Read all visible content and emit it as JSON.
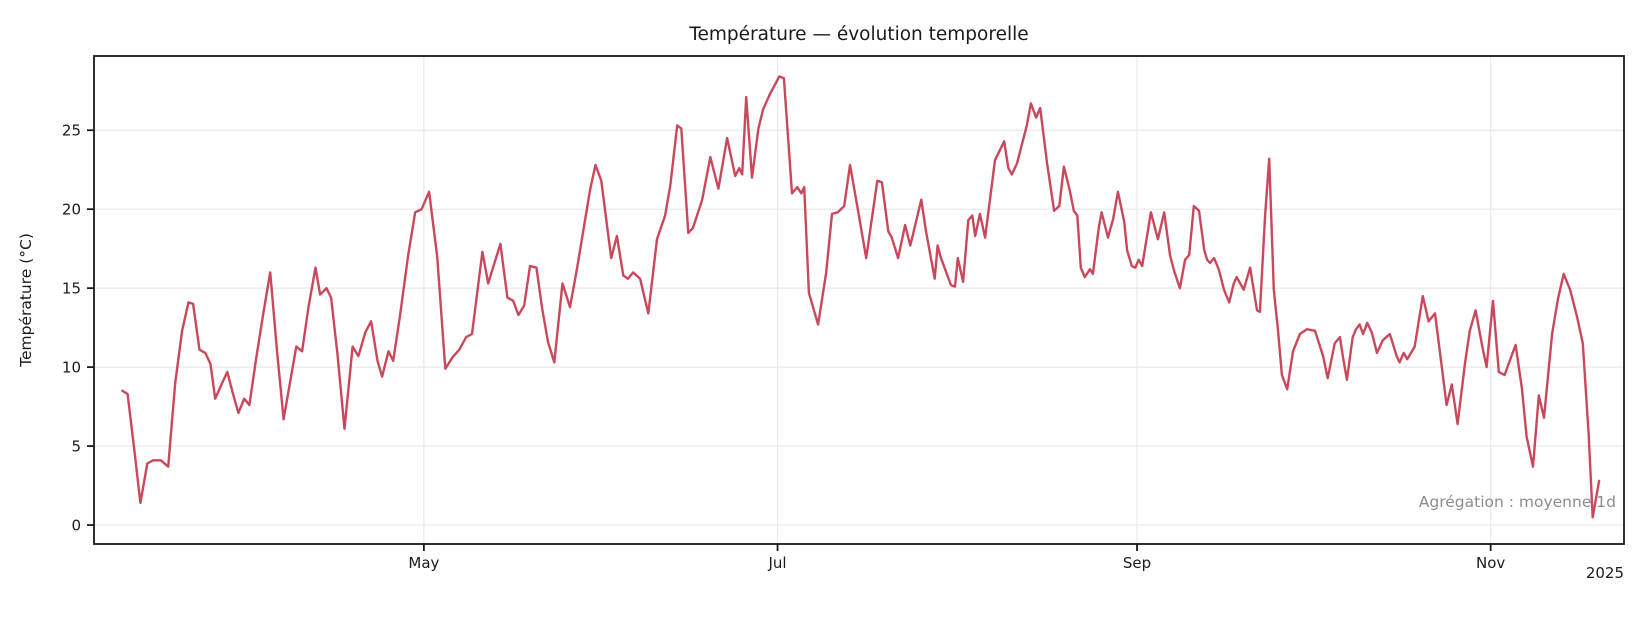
{
  "chart_data": {
    "type": "line",
    "title": "Température — évolution temporelle",
    "ylabel": "Température (°C)",
    "annotation": "Agrégation : moyenne 1d",
    "year_label": "2025",
    "grid": true,
    "legend": "none",
    "line_color": "#c9485c",
    "grid_color": "#e8e8e8",
    "spine_color": "#1a1a1a",
    "annotation_color": "#8c8c8c",
    "x_unit": "days since first sample (daily means, ~2025-03-10 to ~2025-11-19)",
    "xlim_days": [
      -4.9,
      259.0
    ],
    "ylim": [
      -1.2,
      29.7
    ],
    "y_ticks": [
      0,
      5,
      10,
      15,
      20,
      25
    ],
    "x_ticks": [
      {
        "day": 52,
        "label": "May"
      },
      {
        "day": 113,
        "label": "Jul"
      },
      {
        "day": 175,
        "label": "Sep"
      },
      {
        "day": 236,
        "label": "Nov"
      }
    ],
    "series": [
      {
        "name": "Température (moyenne 1d)",
        "points": [
          [
            0,
            8.5
          ],
          [
            0.9,
            8.3
          ],
          [
            2.1,
            4.6
          ],
          [
            3.1,
            1.4
          ],
          [
            4.3,
            3.9
          ],
          [
            5.3,
            4.1
          ],
          [
            6.6,
            4.1
          ],
          [
            7.9,
            3.7
          ],
          [
            9.1,
            9.0
          ],
          [
            10.3,
            12.3
          ],
          [
            11.4,
            14.1
          ],
          [
            12.2,
            14.0
          ],
          [
            13.3,
            11.1
          ],
          [
            14.3,
            10.9
          ],
          [
            15.2,
            10.2
          ],
          [
            16.0,
            8.0
          ],
          [
            17.1,
            8.9
          ],
          [
            18.1,
            9.7
          ],
          [
            19.0,
            8.4
          ],
          [
            20.0,
            7.1
          ],
          [
            21.0,
            8.0
          ],
          [
            21.9,
            7.6
          ],
          [
            23.1,
            10.6
          ],
          [
            24.3,
            13.4
          ],
          [
            25.5,
            16.0
          ],
          [
            26.7,
            10.9
          ],
          [
            27.8,
            6.7
          ],
          [
            29.0,
            9.2
          ],
          [
            30.0,
            11.3
          ],
          [
            31.0,
            11.0
          ],
          [
            32.1,
            13.8
          ],
          [
            33.3,
            16.3
          ],
          [
            34.1,
            14.6
          ],
          [
            35.2,
            15.0
          ],
          [
            36.0,
            14.4
          ],
          [
            37.1,
            10.8
          ],
          [
            38.3,
            6.1
          ],
          [
            39.7,
            11.3
          ],
          [
            40.7,
            10.7
          ],
          [
            41.9,
            12.2
          ],
          [
            42.9,
            12.9
          ],
          [
            44.0,
            10.4
          ],
          [
            44.8,
            9.4
          ],
          [
            45.9,
            11.0
          ],
          [
            46.7,
            10.4
          ],
          [
            47.9,
            13.3
          ],
          [
            49.3,
            17.1
          ],
          [
            50.5,
            19.8
          ],
          [
            51.6,
            20.0
          ],
          [
            52.9,
            21.1
          ],
          [
            54.3,
            17.0
          ],
          [
            55.7,
            9.9
          ],
          [
            56.9,
            10.6
          ],
          [
            58.1,
            11.1
          ],
          [
            59.3,
            11.9
          ],
          [
            60.3,
            12.1
          ],
          [
            62.1,
            17.3
          ],
          [
            63.1,
            15.3
          ],
          [
            64.1,
            16.5
          ],
          [
            65.2,
            17.8
          ],
          [
            66.4,
            14.4
          ],
          [
            67.4,
            14.2
          ],
          [
            68.3,
            13.3
          ],
          [
            69.3,
            13.9
          ],
          [
            70.3,
            16.4
          ],
          [
            71.4,
            16.3
          ],
          [
            72.4,
            13.7
          ],
          [
            73.4,
            11.6
          ],
          [
            74.5,
            10.3
          ],
          [
            75.9,
            15.3
          ],
          [
            77.2,
            13.8
          ],
          [
            78.4,
            16.2
          ],
          [
            79.7,
            19.1
          ],
          [
            80.7,
            21.3
          ],
          [
            81.6,
            22.8
          ],
          [
            82.6,
            21.8
          ],
          [
            84.3,
            16.9
          ],
          [
            85.3,
            18.3
          ],
          [
            86.4,
            15.8
          ],
          [
            87.2,
            15.6
          ],
          [
            88.1,
            16.0
          ],
          [
            89.3,
            15.6
          ],
          [
            90.7,
            13.4
          ],
          [
            92.2,
            18.1
          ],
          [
            93.6,
            19.6
          ],
          [
            94.5,
            21.5
          ],
          [
            95.7,
            25.3
          ],
          [
            96.4,
            25.1
          ],
          [
            97.6,
            18.5
          ],
          [
            98.4,
            18.8
          ],
          [
            100.0,
            20.6
          ],
          [
            101.4,
            23.3
          ],
          [
            102.8,
            21.3
          ],
          [
            104.3,
            24.5
          ],
          [
            105.7,
            22.1
          ],
          [
            106.4,
            22.6
          ],
          [
            106.9,
            22.2
          ],
          [
            107.6,
            27.1
          ],
          [
            108.6,
            22.0
          ],
          [
            109.7,
            25.1
          ],
          [
            110.5,
            26.3
          ],
          [
            111.7,
            27.3
          ],
          [
            113.3,
            28.4
          ],
          [
            114.1,
            28.3
          ],
          [
            115.5,
            21.0
          ],
          [
            116.4,
            21.4
          ],
          [
            117.1,
            21.0
          ],
          [
            117.6,
            21.4
          ],
          [
            118.4,
            14.7
          ],
          [
            120.0,
            12.7
          ],
          [
            121.4,
            16.0
          ],
          [
            122.4,
            19.7
          ],
          [
            123.4,
            19.8
          ],
          [
            124.5,
            20.2
          ],
          [
            125.5,
            22.8
          ],
          [
            126.9,
            19.9
          ],
          [
            128.3,
            16.9
          ],
          [
            130.2,
            21.8
          ],
          [
            131.0,
            21.7
          ],
          [
            132.1,
            18.6
          ],
          [
            132.7,
            18.2
          ],
          [
            133.8,
            16.9
          ],
          [
            135.0,
            19.0
          ],
          [
            135.9,
            17.7
          ],
          [
            137.8,
            20.6
          ],
          [
            138.6,
            18.6
          ],
          [
            140.1,
            15.6
          ],
          [
            140.6,
            17.7
          ],
          [
            141.2,
            16.9
          ],
          [
            142.9,
            15.2
          ],
          [
            143.6,
            15.1
          ],
          [
            144.1,
            16.9
          ],
          [
            145.0,
            15.4
          ],
          [
            145.9,
            19.3
          ],
          [
            146.6,
            19.6
          ],
          [
            147.1,
            18.3
          ],
          [
            147.9,
            19.7
          ],
          [
            148.8,
            18.2
          ],
          [
            150.5,
            23.1
          ],
          [
            152.1,
            24.3
          ],
          [
            152.8,
            22.6
          ],
          [
            153.4,
            22.2
          ],
          [
            154.3,
            22.9
          ],
          [
            156.0,
            25.3
          ],
          [
            156.7,
            26.7
          ],
          [
            157.6,
            25.8
          ],
          [
            158.3,
            26.4
          ],
          [
            159.5,
            22.9
          ],
          [
            160.7,
            19.9
          ],
          [
            161.6,
            20.2
          ],
          [
            162.4,
            22.7
          ],
          [
            163.4,
            21.2
          ],
          [
            164.1,
            19.9
          ],
          [
            164.7,
            19.6
          ],
          [
            165.3,
            16.3
          ],
          [
            166.0,
            15.7
          ],
          [
            166.9,
            16.2
          ],
          [
            167.4,
            15.9
          ],
          [
            168.4,
            18.8
          ],
          [
            168.9,
            19.8
          ],
          [
            170.0,
            18.2
          ],
          [
            170.9,
            19.4
          ],
          [
            171.7,
            21.1
          ],
          [
            172.8,
            19.2
          ],
          [
            173.3,
            17.4
          ],
          [
            174.1,
            16.4
          ],
          [
            174.7,
            16.3
          ],
          [
            175.3,
            16.8
          ],
          [
            175.9,
            16.4
          ],
          [
            177.4,
            19.8
          ],
          [
            178.6,
            18.1
          ],
          [
            179.7,
            19.8
          ],
          [
            180.7,
            17.1
          ],
          [
            181.4,
            16.1
          ],
          [
            182.4,
            15.0
          ],
          [
            183.3,
            16.8
          ],
          [
            184.0,
            17.1
          ],
          [
            184.8,
            20.2
          ],
          [
            185.7,
            19.9
          ],
          [
            186.6,
            17.4
          ],
          [
            187.1,
            16.8
          ],
          [
            187.6,
            16.6
          ],
          [
            188.3,
            16.9
          ],
          [
            189.1,
            16.2
          ],
          [
            190.0,
            14.9
          ],
          [
            190.9,
            14.1
          ],
          [
            191.7,
            15.3
          ],
          [
            192.2,
            15.7
          ],
          [
            193.4,
            14.9
          ],
          [
            194.5,
            16.3
          ],
          [
            195.7,
            13.6
          ],
          [
            196.2,
            13.5
          ],
          [
            197.1,
            19.6
          ],
          [
            197.8,
            23.2
          ],
          [
            198.6,
            14.9
          ],
          [
            199.3,
            12.4
          ],
          [
            200.0,
            9.5
          ],
          [
            200.9,
            8.6
          ],
          [
            201.9,
            11.0
          ],
          [
            203.1,
            12.1
          ],
          [
            204.3,
            12.4
          ],
          [
            205.7,
            12.3
          ],
          [
            207.1,
            10.7
          ],
          [
            207.9,
            9.3
          ],
          [
            209.1,
            11.5
          ],
          [
            210.0,
            11.9
          ],
          [
            210.5,
            10.7
          ],
          [
            211.2,
            9.2
          ],
          [
            212.2,
            11.9
          ],
          [
            212.8,
            12.4
          ],
          [
            213.4,
            12.7
          ],
          [
            214.0,
            12.1
          ],
          [
            214.7,
            12.8
          ],
          [
            215.5,
            12.2
          ],
          [
            216.4,
            10.9
          ],
          [
            217.4,
            11.7
          ],
          [
            218.6,
            12.1
          ],
          [
            219.8,
            10.7
          ],
          [
            220.3,
            10.3
          ],
          [
            221.0,
            10.9
          ],
          [
            221.6,
            10.5
          ],
          [
            222.9,
            11.3
          ],
          [
            224.3,
            14.5
          ],
          [
            225.3,
            12.9
          ],
          [
            226.4,
            13.4
          ],
          [
            227.4,
            10.5
          ],
          [
            228.4,
            7.6
          ],
          [
            229.3,
            8.9
          ],
          [
            230.3,
            6.4
          ],
          [
            231.6,
            10.3
          ],
          [
            232.4,
            12.3
          ],
          [
            233.4,
            13.6
          ],
          [
            234.5,
            11.4
          ],
          [
            235.3,
            10.0
          ],
          [
            236.4,
            14.2
          ],
          [
            237.4,
            9.7
          ],
          [
            238.4,
            9.5
          ],
          [
            239.5,
            10.6
          ],
          [
            240.3,
            11.4
          ],
          [
            241.4,
            8.6
          ],
          [
            242.2,
            5.6
          ],
          [
            243.3,
            3.7
          ],
          [
            244.3,
            8.2
          ],
          [
            245.2,
            6.8
          ],
          [
            246.6,
            12.1
          ],
          [
            247.6,
            14.3
          ],
          [
            248.6,
            15.9
          ],
          [
            249.7,
            14.9
          ],
          [
            250.9,
            13.2
          ],
          [
            251.9,
            11.5
          ],
          [
            252.9,
            5.8
          ],
          [
            253.6,
            0.5
          ],
          [
            254.7,
            2.8
          ]
        ]
      }
    ]
  }
}
